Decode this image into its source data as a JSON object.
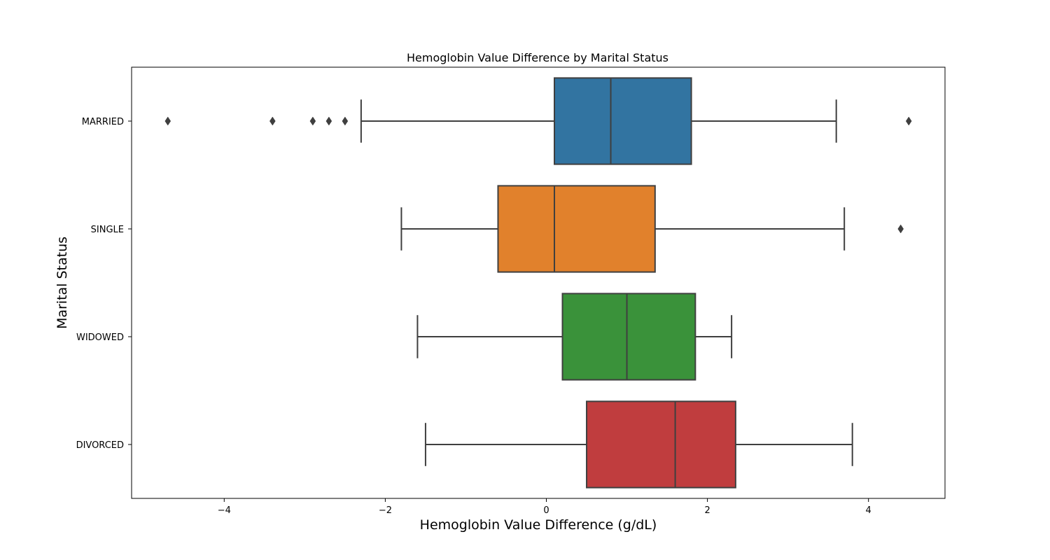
{
  "chart_data": {
    "type": "box",
    "orientation": "horizontal",
    "title": "Hemoglobin Value Difference by Marital Status",
    "xlabel": "Hemoglobin Value Difference (g/dL)",
    "ylabel": "Marital Status",
    "xlim": [
      -5.15,
      4.95
    ],
    "xticks": [
      -4,
      -2,
      0,
      2,
      4
    ],
    "xtick_labels": [
      "−4",
      "−2",
      "0",
      "2",
      "4"
    ],
    "grid": false,
    "legend": "none",
    "categories": [
      "MARRIED",
      "SINGLE",
      "WIDOWED",
      "DIVORCED"
    ],
    "boxes": [
      {
        "category": "MARRIED",
        "whisker_low": -2.3,
        "q1": 0.1,
        "median": 0.8,
        "q3": 1.8,
        "whisker_high": 3.6,
        "outliers": [
          -4.7,
          -3.4,
          -2.9,
          -2.7,
          -2.5,
          4.5
        ],
        "color": "#3274a1"
      },
      {
        "category": "SINGLE",
        "whisker_low": -1.8,
        "q1": -0.6,
        "median": 0.1,
        "q3": 1.35,
        "whisker_high": 3.7,
        "outliers": [
          4.4
        ],
        "color": "#e1812c"
      },
      {
        "category": "WIDOWED",
        "whisker_low": -1.6,
        "q1": 0.2,
        "median": 1.0,
        "q3": 1.85,
        "whisker_high": 2.3,
        "outliers": [],
        "color": "#3a923a"
      },
      {
        "category": "DIVORCED",
        "whisker_low": -1.5,
        "q1": 0.5,
        "median": 1.6,
        "q3": 2.35,
        "whisker_high": 3.8,
        "outliers": [],
        "color": "#c03d3e"
      }
    ],
    "line_color": "#3f3f3f"
  }
}
